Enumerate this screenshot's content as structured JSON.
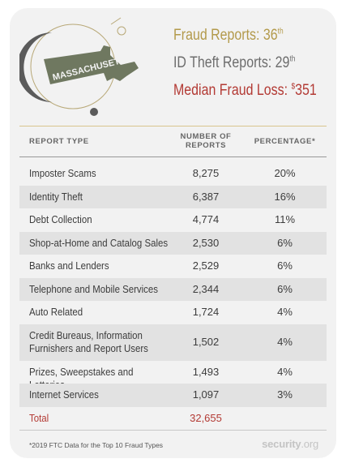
{
  "emblem": {
    "icon": "massachusetts-state-map-icon",
    "state_name": "MASSACHUSETTS"
  },
  "stats": [
    {
      "label": "Fraud Reports: 36",
      "suffix": "th",
      "color": "#b39a4b"
    },
    {
      "label": "ID Theft Reports: 29",
      "suffix": "th",
      "color": "#6d6d6d"
    },
    {
      "label": "Median Fraud Loss: ",
      "prefix": "$",
      "value": "351",
      "color": "#b33a34"
    }
  ],
  "table": {
    "headers": {
      "type": "REPORT TYPE",
      "number": "NUMBER OF\nREPORTS",
      "percentage": "PERCENTAGE*"
    },
    "rows": [
      {
        "type": "Imposter Scams",
        "number": "8,275",
        "percentage": "20%"
      },
      {
        "type": "Identity Theft",
        "number": "6,387",
        "percentage": "16%"
      },
      {
        "type": "Debt Collection",
        "number": "4,774",
        "percentage": "11%"
      },
      {
        "type": "Shop-at-Home and Catalog Sales",
        "number": "2,530",
        "percentage": "6%"
      },
      {
        "type": "Banks and Lenders",
        "number": "2,529",
        "percentage": "6%"
      },
      {
        "type": "Telephone and Mobile Services",
        "number": "2,344",
        "percentage": "6%"
      },
      {
        "type": "Auto Related",
        "number": "1,724",
        "percentage": "4%"
      },
      {
        "type": "Credit Bureaus, Information\nFurnishers and Report Users",
        "number": "1,502",
        "percentage": "4%"
      },
      {
        "type": "Prizes, Sweepstakes and Lotteries",
        "number": "1,493",
        "percentage": "4%"
      },
      {
        "type": "Internet Services",
        "number": "1,097",
        "percentage": "3%"
      }
    ],
    "total": {
      "type": "Total",
      "number": "32,655",
      "percentage": ""
    }
  },
  "footnote": "*2019 FTC Data for the Top 10 Fraud Types",
  "brand": {
    "name": "security",
    "tld": ".org"
  },
  "colors": {
    "gold": "#b39a4b",
    "red": "#b33a34",
    "olive": "#6f7860",
    "card": "#f2f2f2"
  }
}
